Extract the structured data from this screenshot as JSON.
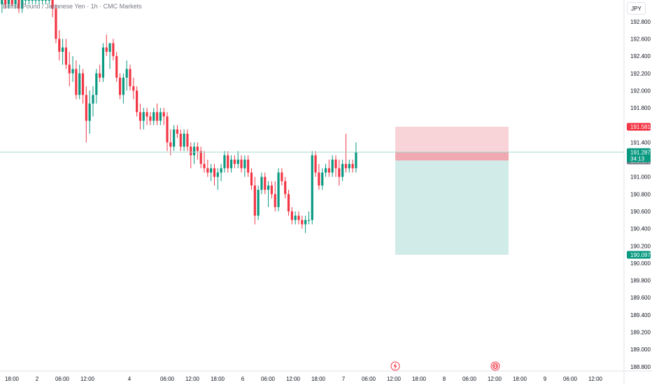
{
  "header": {
    "symbol_title": "British Pound / Japanese Yen · 1h · CMC Markets",
    "currency_button": "JPY"
  },
  "colors": {
    "up": "#089981",
    "down": "#f23645",
    "stop_zone": "#f8d3d7",
    "target_zone": "#d1ece8",
    "price_line": "#a8dcd3",
    "axis_border": "#e0e3eb"
  },
  "events": [
    {
      "icon": "flash-icon",
      "x_label": "12:00"
    },
    {
      "icon": "globe-icon",
      "x_label": "12:00"
    }
  ],
  "price_tags": {
    "stop": {
      "value": "191.581",
      "color": "#f23645"
    },
    "current": {
      "value": "191.287",
      "countdown": "34:13",
      "color": "#089981"
    },
    "entry": {
      "value": "191.190",
      "color": "#787b86"
    },
    "target": {
      "value": "190.097",
      "color": "#089981"
    }
  },
  "chart_data": {
    "type": "candlestick",
    "title": "British Pound / Japanese Yen · 1h · CMC Markets",
    "y_ticks": [
      "192.800",
      "192.600",
      "192.400",
      "192.200",
      "192.000",
      "191.800",
      "191.400",
      "191.000",
      "190.800",
      "190.600",
      "190.400",
      "190.200",
      "190.000",
      "189.800",
      "189.600",
      "189.400",
      "189.200",
      "189.000",
      "188.800"
    ],
    "x_ticks": [
      "18:00",
      "2",
      "06:00",
      "12:00",
      "4",
      "06:00",
      "12:00",
      "18:00",
      "6",
      "06:00",
      "12:00",
      "18:00",
      "7",
      "06:00",
      "12:00",
      "18:00",
      "8",
      "06:00",
      "12:00",
      "18:00",
      "9",
      "06:00",
      "12:00"
    ],
    "ylim": [
      188.75,
      193.05
    ],
    "position": {
      "entry": 191.19,
      "stop": 191.581,
      "target": 190.097
    },
    "current_price": 191.287,
    "candles": [
      {
        "o": 192.7,
        "h": 193.1,
        "l": 192.65,
        "c": 193.0
      },
      {
        "o": 193.0,
        "h": 193.1,
        "l": 192.9,
        "c": 193.05
      },
      {
        "o": 193.05,
        "h": 193.1,
        "l": 192.95,
        "c": 193.0
      },
      {
        "o": 193.0,
        "h": 193.1,
        "l": 192.95,
        "c": 193.05
      },
      {
        "o": 193.05,
        "h": 193.1,
        "l": 192.98,
        "c": 193.0
      },
      {
        "o": 193.0,
        "h": 193.1,
        "l": 192.95,
        "c": 193.05
      },
      {
        "o": 193.05,
        "h": 193.1,
        "l": 192.9,
        "c": 192.95
      },
      {
        "o": 192.95,
        "h": 193.1,
        "l": 192.9,
        "c": 193.05
      },
      {
        "o": 193.05,
        "h": 193.1,
        "l": 193.0,
        "c": 193.05
      },
      {
        "o": 193.05,
        "h": 193.1,
        "l": 193.0,
        "c": 193.05
      },
      {
        "o": 193.05,
        "h": 193.1,
        "l": 193.0,
        "c": 193.05
      },
      {
        "o": 193.05,
        "h": 193.1,
        "l": 193.0,
        "c": 193.05
      },
      {
        "o": 193.05,
        "h": 193.1,
        "l": 193.0,
        "c": 193.05
      },
      {
        "o": 193.05,
        "h": 193.1,
        "l": 193.0,
        "c": 193.05
      },
      {
        "o": 193.05,
        "h": 193.1,
        "l": 193.0,
        "c": 193.05
      },
      {
        "o": 193.05,
        "h": 193.1,
        "l": 193.0,
        "c": 193.05
      },
      {
        "o": 193.05,
        "h": 193.1,
        "l": 192.85,
        "c": 192.95
      },
      {
        "o": 192.95,
        "h": 193.0,
        "l": 192.55,
        "c": 192.6
      },
      {
        "o": 192.6,
        "h": 192.7,
        "l": 192.35,
        "c": 192.45
      },
      {
        "o": 192.45,
        "h": 192.6,
        "l": 192.3,
        "c": 192.5
      },
      {
        "o": 192.5,
        "h": 192.6,
        "l": 192.25,
        "c": 192.3
      },
      {
        "o": 192.3,
        "h": 192.45,
        "l": 192.05,
        "c": 192.2
      },
      {
        "o": 192.2,
        "h": 192.4,
        "l": 192.1,
        "c": 192.25
      },
      {
        "o": 192.25,
        "h": 192.35,
        "l": 191.9,
        "c": 191.95
      },
      {
        "o": 191.95,
        "h": 192.3,
        "l": 191.9,
        "c": 192.2
      },
      {
        "o": 192.2,
        "h": 192.25,
        "l": 191.85,
        "c": 191.95
      },
      {
        "o": 191.95,
        "h": 192.05,
        "l": 191.4,
        "c": 191.65
      },
      {
        "o": 191.65,
        "h": 192.0,
        "l": 191.5,
        "c": 191.85
      },
      {
        "o": 191.85,
        "h": 192.05,
        "l": 191.7,
        "c": 191.95
      },
      {
        "o": 191.95,
        "h": 192.25,
        "l": 191.85,
        "c": 192.2
      },
      {
        "o": 192.2,
        "h": 192.3,
        "l": 192.1,
        "c": 192.15
      },
      {
        "o": 192.15,
        "h": 192.55,
        "l": 192.1,
        "c": 192.5
      },
      {
        "o": 192.5,
        "h": 192.65,
        "l": 192.4,
        "c": 192.45
      },
      {
        "o": 192.45,
        "h": 192.55,
        "l": 192.25,
        "c": 192.55
      },
      {
        "o": 192.55,
        "h": 192.6,
        "l": 192.35,
        "c": 192.4
      },
      {
        "o": 192.4,
        "h": 192.45,
        "l": 192.1,
        "c": 192.15
      },
      {
        "o": 192.15,
        "h": 192.2,
        "l": 191.9,
        "c": 191.95
      },
      {
        "o": 191.95,
        "h": 192.2,
        "l": 191.85,
        "c": 192.15
      },
      {
        "o": 192.15,
        "h": 192.35,
        "l": 192.0,
        "c": 192.25
      },
      {
        "o": 192.25,
        "h": 192.3,
        "l": 192.0,
        "c": 192.05
      },
      {
        "o": 192.05,
        "h": 192.15,
        "l": 191.9,
        "c": 192.0
      },
      {
        "o": 192.0,
        "h": 192.05,
        "l": 191.7,
        "c": 191.75
      },
      {
        "o": 191.75,
        "h": 191.85,
        "l": 191.55,
        "c": 191.65
      },
      {
        "o": 191.65,
        "h": 191.8,
        "l": 191.55,
        "c": 191.75
      },
      {
        "o": 191.75,
        "h": 191.8,
        "l": 191.6,
        "c": 191.7
      },
      {
        "o": 191.7,
        "h": 191.75,
        "l": 191.6,
        "c": 191.65
      },
      {
        "o": 191.65,
        "h": 191.8,
        "l": 191.6,
        "c": 191.75
      },
      {
        "o": 191.75,
        "h": 191.85,
        "l": 191.6,
        "c": 191.65
      },
      {
        "o": 191.65,
        "h": 191.8,
        "l": 191.6,
        "c": 191.75
      },
      {
        "o": 191.75,
        "h": 191.8,
        "l": 191.6,
        "c": 191.7
      },
      {
        "o": 191.7,
        "h": 191.75,
        "l": 191.3,
        "c": 191.4
      },
      {
        "o": 191.4,
        "h": 191.55,
        "l": 191.25,
        "c": 191.35
      },
      {
        "o": 191.35,
        "h": 191.6,
        "l": 191.3,
        "c": 191.55
      },
      {
        "o": 191.55,
        "h": 191.6,
        "l": 191.45,
        "c": 191.5
      },
      {
        "o": 191.5,
        "h": 191.55,
        "l": 191.3,
        "c": 191.35
      },
      {
        "o": 191.35,
        "h": 191.55,
        "l": 191.3,
        "c": 191.5
      },
      {
        "o": 191.5,
        "h": 191.55,
        "l": 191.3,
        "c": 191.35
      },
      {
        "o": 191.35,
        "h": 191.4,
        "l": 191.1,
        "c": 191.25
      },
      {
        "o": 191.25,
        "h": 191.4,
        "l": 191.15,
        "c": 191.35
      },
      {
        "o": 191.35,
        "h": 191.4,
        "l": 191.2,
        "c": 191.3
      },
      {
        "o": 191.3,
        "h": 191.35,
        "l": 191.1,
        "c": 191.15
      },
      {
        "o": 191.15,
        "h": 191.3,
        "l": 191.05,
        "c": 191.1
      },
      {
        "o": 191.1,
        "h": 191.2,
        "l": 191.0,
        "c": 191.05
      },
      {
        "o": 191.05,
        "h": 191.15,
        "l": 190.95,
        "c": 191.1
      },
      {
        "o": 191.1,
        "h": 191.15,
        "l": 190.9,
        "c": 191.0
      },
      {
        "o": 191.0,
        "h": 191.1,
        "l": 190.85,
        "c": 191.05
      },
      {
        "o": 191.05,
        "h": 191.15,
        "l": 190.95,
        "c": 191.1
      },
      {
        "o": 191.1,
        "h": 191.3,
        "l": 191.05,
        "c": 191.25
      },
      {
        "o": 191.25,
        "h": 191.3,
        "l": 191.05,
        "c": 191.1
      },
      {
        "o": 191.1,
        "h": 191.25,
        "l": 191.05,
        "c": 191.2
      },
      {
        "o": 191.2,
        "h": 191.25,
        "l": 191.1,
        "c": 191.15
      },
      {
        "o": 191.15,
        "h": 191.3,
        "l": 191.1,
        "c": 191.2
      },
      {
        "o": 191.2,
        "h": 191.25,
        "l": 191.05,
        "c": 191.1
      },
      {
        "o": 191.1,
        "h": 191.25,
        "l": 191.0,
        "c": 191.2
      },
      {
        "o": 191.2,
        "h": 191.25,
        "l": 191.0,
        "c": 191.05
      },
      {
        "o": 191.05,
        "h": 191.1,
        "l": 190.85,
        "c": 190.9
      },
      {
        "o": 190.9,
        "h": 191.0,
        "l": 190.45,
        "c": 190.55
      },
      {
        "o": 190.55,
        "h": 190.9,
        "l": 190.5,
        "c": 190.85
      },
      {
        "o": 190.85,
        "h": 191.05,
        "l": 190.8,
        "c": 191.0
      },
      {
        "o": 191.0,
        "h": 191.05,
        "l": 190.8,
        "c": 190.85
      },
      {
        "o": 190.85,
        "h": 190.95,
        "l": 190.65,
        "c": 190.9
      },
      {
        "o": 190.9,
        "h": 190.95,
        "l": 190.75,
        "c": 190.8
      },
      {
        "o": 190.8,
        "h": 190.95,
        "l": 190.6,
        "c": 190.65
      },
      {
        "o": 190.65,
        "h": 191.1,
        "l": 190.6,
        "c": 191.05
      },
      {
        "o": 191.05,
        "h": 191.1,
        "l": 190.9,
        "c": 190.95
      },
      {
        "o": 190.95,
        "h": 191.0,
        "l": 190.75,
        "c": 190.8
      },
      {
        "o": 190.8,
        "h": 190.85,
        "l": 190.55,
        "c": 190.6
      },
      {
        "o": 190.6,
        "h": 190.65,
        "l": 190.45,
        "c": 190.5
      },
      {
        "o": 190.5,
        "h": 190.6,
        "l": 190.45,
        "c": 190.55
      },
      {
        "o": 190.55,
        "h": 190.6,
        "l": 190.45,
        "c": 190.5
      },
      {
        "o": 190.5,
        "h": 190.55,
        "l": 190.4,
        "c": 190.45
      },
      {
        "o": 190.45,
        "h": 190.55,
        "l": 190.35,
        "c": 190.5
      },
      {
        "o": 190.5,
        "h": 190.6,
        "l": 190.45,
        "c": 190.5
      },
      {
        "o": 190.5,
        "h": 191.3,
        "l": 190.45,
        "c": 191.25
      },
      {
        "o": 191.25,
        "h": 191.3,
        "l": 191.0,
        "c": 191.05
      },
      {
        "o": 191.05,
        "h": 191.15,
        "l": 190.85,
        "c": 190.9
      },
      {
        "o": 190.9,
        "h": 191.1,
        "l": 190.85,
        "c": 191.05
      },
      {
        "o": 191.05,
        "h": 191.15,
        "l": 191.0,
        "c": 191.1
      },
      {
        "o": 191.1,
        "h": 191.2,
        "l": 191.0,
        "c": 191.05
      },
      {
        "o": 191.05,
        "h": 191.25,
        "l": 191.0,
        "c": 191.2
      },
      {
        "o": 191.2,
        "h": 191.25,
        "l": 191.0,
        "c": 191.1
      },
      {
        "o": 191.1,
        "h": 191.2,
        "l": 190.9,
        "c": 191.0
      },
      {
        "o": 191.0,
        "h": 191.2,
        "l": 190.95,
        "c": 191.15
      },
      {
        "o": 191.15,
        "h": 191.5,
        "l": 191.05,
        "c": 191.1
      },
      {
        "o": 191.1,
        "h": 191.2,
        "l": 191.05,
        "c": 191.15
      },
      {
        "o": 191.15,
        "h": 191.2,
        "l": 191.05,
        "c": 191.1
      },
      {
        "o": 191.1,
        "h": 191.4,
        "l": 191.05,
        "c": 191.287
      }
    ]
  }
}
